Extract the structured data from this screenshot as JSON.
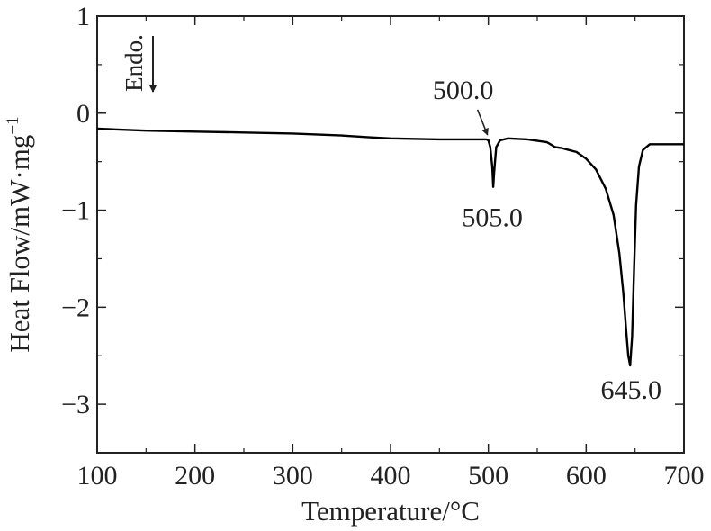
{
  "chart_data": {
    "type": "line",
    "title": "",
    "xlabel": "Temperature/°C",
    "ylabel_main": "Heat Flow/mW·mg",
    "ylabel_sup": "−1",
    "xlim": [
      100,
      700
    ],
    "ylim": [
      -3.5,
      1
    ],
    "x_ticks": [
      100,
      200,
      300,
      400,
      500,
      600,
      700
    ],
    "y_ticks": [
      1,
      0,
      -1,
      -2,
      -3
    ],
    "y_tick_labels": [
      "1",
      "0",
      "−1",
      "−2",
      "−3"
    ],
    "grid": false,
    "series": [
      {
        "name": "",
        "color": "#000000",
        "points": [
          [
            100,
            -0.16
          ],
          [
            150,
            -0.18
          ],
          [
            200,
            -0.19
          ],
          [
            250,
            -0.2
          ],
          [
            300,
            -0.21
          ],
          [
            350,
            -0.23
          ],
          [
            380,
            -0.25
          ],
          [
            400,
            -0.26
          ],
          [
            450,
            -0.27
          ],
          [
            490,
            -0.27
          ],
          [
            498,
            -0.27
          ],
          [
            500,
            -0.28
          ],
          [
            502,
            -0.35
          ],
          [
            504,
            -0.55
          ],
          [
            505,
            -0.76
          ],
          [
            506,
            -0.6
          ],
          [
            508,
            -0.35
          ],
          [
            512,
            -0.28
          ],
          [
            520,
            -0.26
          ],
          [
            540,
            -0.27
          ],
          [
            560,
            -0.3
          ],
          [
            565,
            -0.33
          ],
          [
            568,
            -0.35
          ],
          [
            575,
            -0.36
          ],
          [
            590,
            -0.4
          ],
          [
            600,
            -0.47
          ],
          [
            610,
            -0.58
          ],
          [
            620,
            -0.78
          ],
          [
            628,
            -1.05
          ],
          [
            634,
            -1.45
          ],
          [
            638,
            -1.85
          ],
          [
            641,
            -2.25
          ],
          [
            643,
            -2.5
          ],
          [
            645,
            -2.6
          ],
          [
            647,
            -2.3
          ],
          [
            649,
            -1.6
          ],
          [
            651,
            -0.95
          ],
          [
            654,
            -0.55
          ],
          [
            658,
            -0.38
          ],
          [
            665,
            -0.32
          ],
          [
            680,
            -0.32
          ],
          [
            700,
            -0.32
          ]
        ]
      }
    ],
    "annotations": [
      {
        "text": "500.0",
        "x": 500,
        "y": -0.27,
        "arrow": true
      },
      {
        "text": "505.0",
        "x": 505,
        "y": -0.76
      },
      {
        "text": "645.0",
        "x": 645,
        "y": -2.6
      }
    ],
    "endo_label": "Endo."
  }
}
